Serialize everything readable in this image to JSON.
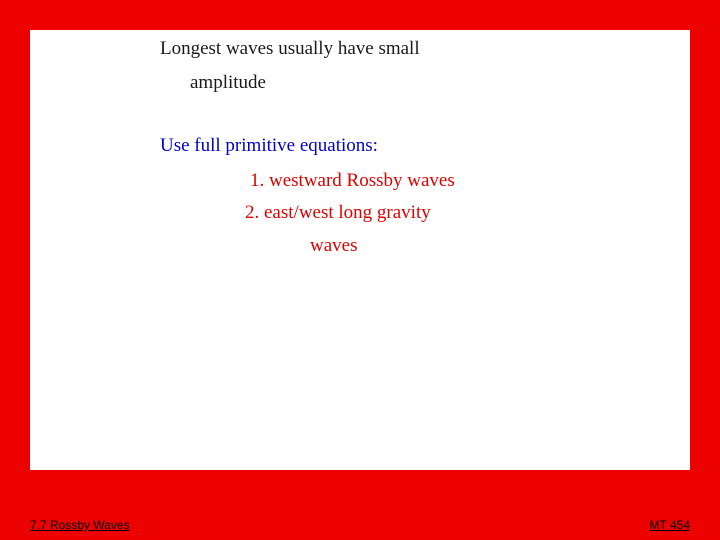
{
  "slide": {
    "frame_color": "#ed0000",
    "background_color": "#000000",
    "whiteboard_color": "#ffffff",
    "text_black": "#1a1a1a",
    "text_blue": "#0000cc",
    "text_red": "#dd0000",
    "handwriting": {
      "line1": "Longest waves usually have small",
      "line2": "amplitude",
      "line3": "Use full primitive equations:",
      "line4": "1. westward Rossby waves",
      "line5": "2. east/west long gravity",
      "line6": "waves"
    },
    "footer": {
      "left": "7.7 Rossby Waves",
      "right": "MT 454"
    }
  }
}
